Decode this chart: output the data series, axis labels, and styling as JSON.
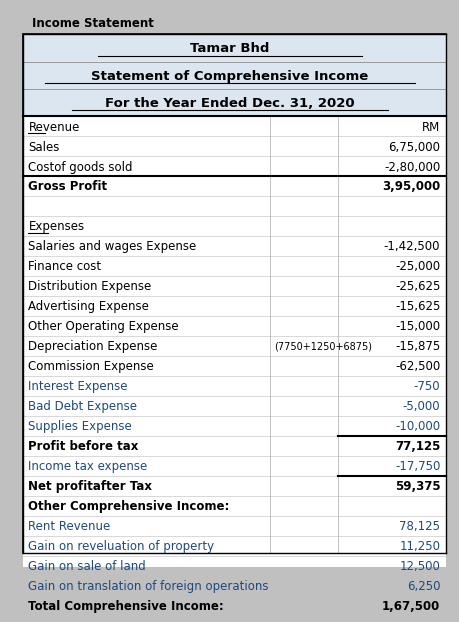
{
  "title_label": "Income Statement",
  "header1": "Tamar Bhd",
  "header2": "Statement of Comprehensive Income",
  "header3": "For the Year Ended Dec. 31, 2020",
  "bg_header": "#dce6f1",
  "bg_white": "#ffffff",
  "bg_light": "#f2f2f2",
  "text_color_normal": "#000000",
  "text_color_blue": "#1f497d",
  "rows": [
    {
      "label": "Revenue",
      "note": "",
      "value": "RM",
      "bold": false,
      "underline_label": true,
      "color": "normal",
      "top_border": true,
      "bottom_border": false,
      "bg": "white"
    },
    {
      "label": "Sales",
      "note": "",
      "value": "6,75,000",
      "bold": false,
      "underline_label": false,
      "color": "normal",
      "top_border": false,
      "bottom_border": false,
      "bg": "white"
    },
    {
      "label": "Costof goods sold",
      "note": "",
      "value": "-2,80,000",
      "bold": false,
      "underline_label": false,
      "color": "normal",
      "top_border": false,
      "bottom_border": false,
      "bg": "white"
    },
    {
      "label": "Gross Profit",
      "note": "",
      "value": "3,95,000",
      "bold": true,
      "underline_label": false,
      "color": "normal",
      "top_border": true,
      "bottom_border": false,
      "bg": "white"
    },
    {
      "label": "",
      "note": "",
      "value": "",
      "bold": false,
      "underline_label": false,
      "color": "normal",
      "top_border": false,
      "bottom_border": false,
      "bg": "white"
    },
    {
      "label": "Expenses",
      "note": "",
      "value": "",
      "bold": false,
      "underline_label": true,
      "color": "normal",
      "top_border": false,
      "bottom_border": false,
      "bg": "white"
    },
    {
      "label": "Salaries and wages Expense",
      "note": "",
      "value": "-1,42,500",
      "bold": false,
      "underline_label": false,
      "color": "normal",
      "top_border": false,
      "bottom_border": false,
      "bg": "white"
    },
    {
      "label": "Finance cost",
      "note": "",
      "value": "-25,000",
      "bold": false,
      "underline_label": false,
      "color": "normal",
      "top_border": false,
      "bottom_border": false,
      "bg": "white"
    },
    {
      "label": "Distribution Expense",
      "note": "",
      "value": "-25,625",
      "bold": false,
      "underline_label": false,
      "color": "normal",
      "top_border": false,
      "bottom_border": false,
      "bg": "white"
    },
    {
      "label": "Advertising Expense",
      "note": "",
      "value": "-15,625",
      "bold": false,
      "underline_label": false,
      "color": "normal",
      "top_border": false,
      "bottom_border": false,
      "bg": "white"
    },
    {
      "label": "Other Operating Expense",
      "note": "",
      "value": "-15,000",
      "bold": false,
      "underline_label": false,
      "color": "normal",
      "top_border": false,
      "bottom_border": false,
      "bg": "white"
    },
    {
      "label": "Depreciation Expense",
      "note": "(7750+1250+6875)",
      "value": "-15,875",
      "bold": false,
      "underline_label": false,
      "color": "normal",
      "top_border": false,
      "bottom_border": false,
      "bg": "white"
    },
    {
      "label": "Commission Expense",
      "note": "",
      "value": "-62,500",
      "bold": false,
      "underline_label": false,
      "color": "normal",
      "top_border": false,
      "bottom_border": false,
      "bg": "white"
    },
    {
      "label": "Interest Expense",
      "note": "",
      "value": "-750",
      "bold": false,
      "underline_label": false,
      "color": "blue",
      "top_border": false,
      "bottom_border": false,
      "bg": "white"
    },
    {
      "label": "Bad Debt Expense",
      "note": "",
      "value": "-5,000",
      "bold": false,
      "underline_label": false,
      "color": "blue",
      "top_border": false,
      "bottom_border": false,
      "bg": "white"
    },
    {
      "label": "Supplies Expense",
      "note": "",
      "value": "-10,000",
      "bold": false,
      "underline_label": false,
      "color": "blue",
      "top_border": false,
      "bottom_border": true,
      "bg": "white"
    },
    {
      "label": "Profit before tax",
      "note": "",
      "value": "77,125",
      "bold": true,
      "underline_label": false,
      "color": "normal",
      "top_border": false,
      "bottom_border": false,
      "bg": "white"
    },
    {
      "label": "Income tax expense",
      "note": "",
      "value": "-17,750",
      "bold": false,
      "underline_label": false,
      "color": "blue",
      "top_border": false,
      "bottom_border": true,
      "bg": "white"
    },
    {
      "label": "Net profitafter Tax",
      "note": "",
      "value": "59,375",
      "bold": true,
      "underline_label": false,
      "color": "normal",
      "top_border": false,
      "bottom_border": false,
      "bg": "white"
    },
    {
      "label": "Other Comprehensive Income:",
      "note": "",
      "value": "",
      "bold": true,
      "underline_label": false,
      "color": "normal",
      "top_border": false,
      "bottom_border": false,
      "bg": "white"
    },
    {
      "label": "Rent Revenue",
      "note": "",
      "value": "78,125",
      "bold": false,
      "underline_label": false,
      "color": "blue",
      "top_border": false,
      "bottom_border": false,
      "bg": "white"
    },
    {
      "label": "Gain on reveluation of property",
      "note": "",
      "value": "11,250",
      "bold": false,
      "underline_label": false,
      "color": "blue",
      "top_border": false,
      "bottom_border": false,
      "bg": "white"
    },
    {
      "label": "Gain on sale of land",
      "note": "",
      "value": "12,500",
      "bold": false,
      "underline_label": false,
      "color": "blue",
      "top_border": false,
      "bottom_border": false,
      "bg": "white"
    },
    {
      "label": "Gain on translation of foreign operations",
      "note": "",
      "value": "6,250",
      "bold": false,
      "underline_label": false,
      "color": "blue",
      "top_border": false,
      "bottom_border": false,
      "bg": "white"
    },
    {
      "label": "Total Comprehensive Income:",
      "note": "",
      "value": "1,67,500",
      "bold": true,
      "underline_label": false,
      "color": "normal",
      "top_border": false,
      "bottom_border": false,
      "bg": "light"
    },
    {
      "label": "",
      "note": "",
      "value": "",
      "bold": false,
      "underline_label": false,
      "color": "normal",
      "top_border": false,
      "bottom_border": false,
      "bg": "white"
    }
  ],
  "title_font_size": 8.5,
  "header_font_size": 9.5,
  "body_font_size": 8.5
}
